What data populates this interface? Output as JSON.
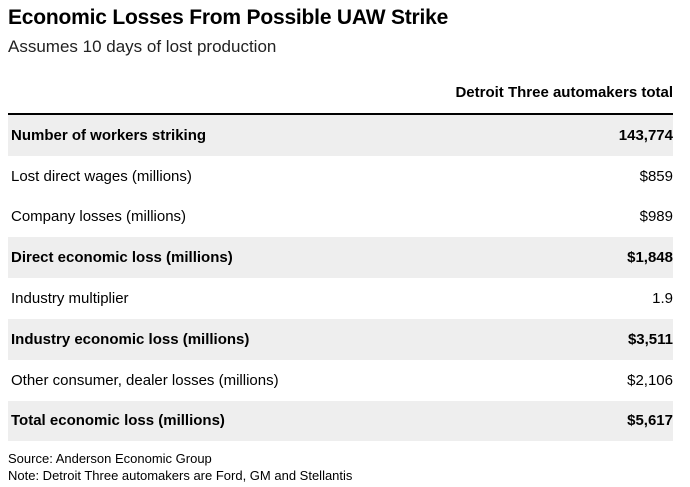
{
  "chart_data": {
    "type": "table",
    "title": "Economic Losses From Possible UAW Strike",
    "subtitle": "Assumes 10 days of lost production",
    "column_header": "Detroit Three automakers total",
    "rows": [
      {
        "label": "Number of workers striking",
        "value": "143,774",
        "bold": true,
        "shaded": true
      },
      {
        "label": "Lost direct wages (millions)",
        "value": "$859",
        "bold": false,
        "shaded": false
      },
      {
        "label": "Company losses (millions)",
        "value": "$989",
        "bold": false,
        "shaded": false
      },
      {
        "label": "Direct economic loss (millions)",
        "value": "$1,848",
        "bold": true,
        "shaded": true
      },
      {
        "label": "Industry multiplier",
        "value": "1.9",
        "bold": false,
        "shaded": false
      },
      {
        "label": "Industry economic loss (millions)",
        "value": "$3,511",
        "bold": true,
        "shaded": true
      },
      {
        "label": "Other consumer, dealer losses (millions)",
        "value": "$2,106",
        "bold": false,
        "shaded": false
      },
      {
        "label": "Total economic loss (millions)",
        "value": "$5,617",
        "bold": true,
        "shaded": true
      }
    ],
    "source": "Source: Anderson Economic Group",
    "note": "Note: Detroit Three automakers are Ford, GM and Stellantis"
  }
}
